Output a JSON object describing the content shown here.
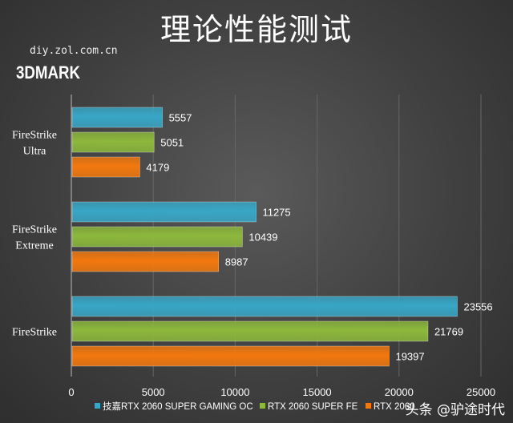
{
  "chart_data": {
    "type": "bar",
    "orientation": "horizontal",
    "title": "理论性能测试",
    "subtitle": "3DMARK",
    "source": "diy.zol.com.cn",
    "categories": [
      "FireStrike Ultra",
      "FireStrike Extreme",
      "FireStrike"
    ],
    "series": [
      {
        "name": "技嘉RTX 2060 SUPER GAMING OC",
        "color": "#38a6c6",
        "values": [
          5557,
          11275,
          23556
        ]
      },
      {
        "name": "RTX 2060 SUPER FE",
        "color": "#8cb83c",
        "values": [
          5051,
          10439,
          21769
        ]
      },
      {
        "name": "RTX 2060",
        "color": "#f2780e",
        "values": [
          4179,
          8987,
          19397
        ]
      }
    ],
    "xlim": [
      0,
      25000
    ],
    "xticks": [
      "0",
      "5000",
      "10000",
      "15000",
      "20000",
      "25000"
    ],
    "grid": true,
    "legend": "bottom"
  },
  "watermark": "头条 @驴途时代"
}
